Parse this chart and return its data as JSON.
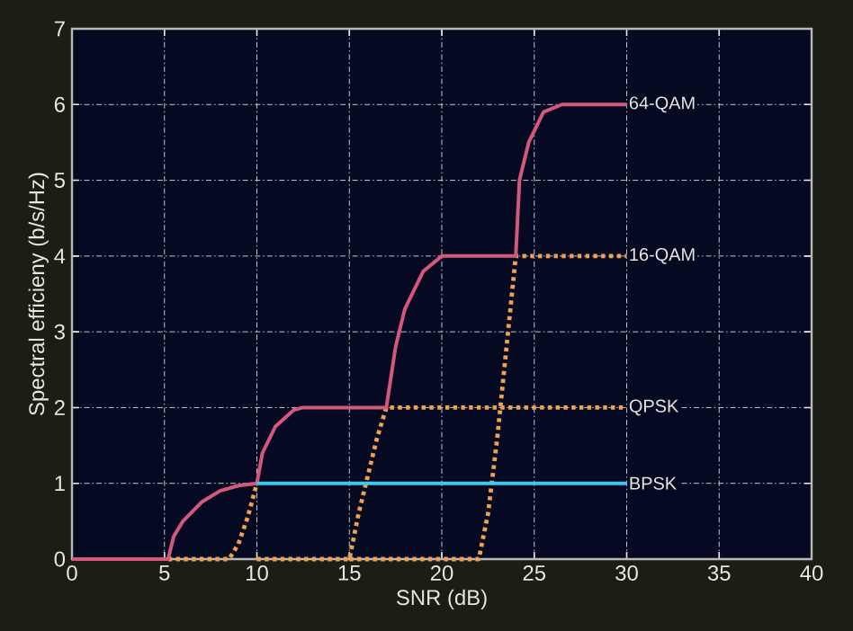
{
  "chart_data": {
    "type": "line",
    "xlabel": "SNR (dB)",
    "ylabel": "Spectral efficieny (b/s/Hz)",
    "xlim": [
      0,
      40
    ],
    "ylim": [
      0,
      7
    ],
    "xticks": [
      0,
      5,
      10,
      15,
      20,
      25,
      30,
      35,
      40
    ],
    "yticks": [
      0,
      1,
      2,
      3,
      4,
      5,
      6,
      7
    ],
    "grid": true,
    "marker": "none",
    "series": [
      {
        "name": "64-QAM",
        "color": "#d4587c",
        "line_style": "solid",
        "x": [
          0,
          5.2,
          5.5,
          6,
          7,
          8,
          9,
          10,
          10.3,
          11,
          12,
          12.5,
          17,
          17.5,
          18,
          19,
          20,
          24,
          24.2,
          24.7,
          25.5,
          26.5,
          30
        ],
        "values": [
          0,
          0,
          0.3,
          0.5,
          0.75,
          0.9,
          0.97,
          1,
          1.4,
          1.75,
          1.97,
          2,
          2,
          2.8,
          3.3,
          3.8,
          4,
          4,
          5,
          5.5,
          5.9,
          6,
          6
        ]
      },
      {
        "color": "#f0a050",
        "line_style": "dotted",
        "x": [
          5.2,
          8.5,
          9,
          9.5,
          10
        ],
        "values": [
          0,
          0,
          0.2,
          0.55,
          1
        ]
      },
      {
        "name": "QPSK",
        "color": "#f0a050",
        "line_style": "dotted",
        "x": [
          10,
          15,
          15.5,
          16,
          16.5,
          17,
          30
        ],
        "values": [
          0,
          0,
          0.6,
          1.1,
          1.6,
          2,
          2
        ]
      },
      {
        "name": "16-QAM",
        "color": "#f0a050",
        "line_style": "dotted",
        "x": [
          15,
          22,
          22.5,
          23,
          23.5,
          24,
          30
        ],
        "values": [
          0,
          0,
          0.6,
          1.6,
          2.8,
          4,
          4
        ]
      },
      {
        "name": "BPSK",
        "color": "#3ec8f0",
        "line_style": "solid",
        "x": [
          10,
          30
        ],
        "values": [
          1,
          1
        ]
      }
    ]
  }
}
